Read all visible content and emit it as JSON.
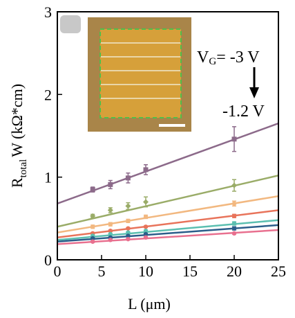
{
  "chart_data": {
    "type": "line",
    "x_label": "L (μm)",
    "y_label_parts": [
      "R",
      "total",
      "W (kΩ*cm)"
    ],
    "annotation_top": [
      "V",
      "G",
      "= -3 V"
    ],
    "annotation_bottom": "-1.2 V",
    "x": [
      4,
      6,
      8,
      10,
      20
    ],
    "fit_x": [
      0,
      25
    ],
    "xlim": [
      0,
      25
    ],
    "xticks": [
      0,
      5,
      10,
      15,
      20,
      25
    ],
    "ylim": [
      0,
      3
    ],
    "yticks": [
      0,
      1,
      2,
      3
    ],
    "series": [
      {
        "color": "#8c6a8a",
        "marker": "square",
        "values": [
          0.85,
          0.91,
          0.99,
          1.09,
          1.46
        ],
        "errors": [
          0.03,
          0.05,
          0.06,
          0.06,
          0.15
        ],
        "fit": [
          0.68,
          1.65
        ]
      },
      {
        "color": "#9aac68",
        "marker": "diamond",
        "values": [
          0.53,
          0.6,
          0.65,
          0.7,
          0.9
        ],
        "errors": [
          0.02,
          0.03,
          0.04,
          0.06,
          0.07
        ],
        "fit": [
          0.4,
          1.02
        ]
      },
      {
        "color": "#f2b880",
        "marker": "circle",
        "values": [
          0.4,
          0.43,
          0.47,
          0.52,
          0.68
        ],
        "errors": [
          0.02,
          0.02,
          0.02,
          0.02,
          0.03
        ],
        "fit": [
          0.33,
          0.77
        ]
      },
      {
        "color": "#e8735a",
        "marker": "circle",
        "values": [
          0.32,
          0.35,
          0.38,
          0.4,
          0.53
        ],
        "errors": [
          0.01,
          0.01,
          0.01,
          0.01,
          0.02
        ],
        "fit": [
          0.27,
          0.6
        ]
      },
      {
        "color": "#5bbfb0",
        "marker": "circle",
        "values": [
          0.29,
          0.31,
          0.33,
          0.35,
          0.44
        ],
        "errors": [
          0.01,
          0.01,
          0.01,
          0.01,
          0.02
        ],
        "fit": [
          0.24,
          0.48
        ]
      },
      {
        "color": "#2b5d8a",
        "marker": "circle",
        "values": [
          0.26,
          0.27,
          0.29,
          0.31,
          0.38
        ],
        "errors": [
          0.01,
          0.01,
          0.01,
          0.01,
          0.02
        ],
        "fit": [
          0.22,
          0.42
        ]
      },
      {
        "color": "#e8708f",
        "marker": "circle",
        "values": [
          0.22,
          0.24,
          0.25,
          0.27,
          0.32
        ],
        "errors": [
          0.01,
          0.01,
          0.01,
          0.01,
          0.01
        ],
        "fit": [
          0.19,
          0.36
        ]
      }
    ]
  }
}
